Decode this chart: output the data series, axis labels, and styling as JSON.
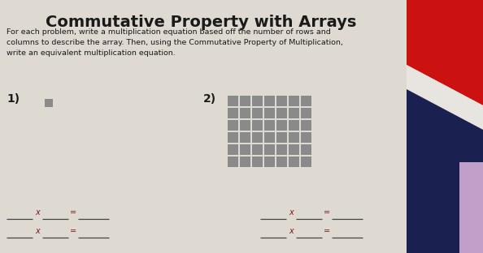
{
  "title": "Commutative Property with Arrays",
  "instructions": "For each problem, write a multiplication equation based off the number of rows and\ncolumns to describe the array. Then, using the Commutative Property of Multiplication,\nwrite an equivalent multiplication equation.",
  "problem1_label": "1)",
  "problem2_label": "2)",
  "array1_rows": 1,
  "array1_cols": 1,
  "array2_rows": 6,
  "array2_cols": 7,
  "square_color": "#8a8a8a",
  "bg_color": "#dedad2",
  "text_color": "#1a1a1a",
  "equation_color": "#7a1a1a",
  "title_fontsize": 14,
  "instr_fontsize": 6.8,
  "label_fontsize": 10,
  "eq_fontsize": 7.0,
  "flag_red": "#cc1111",
  "flag_white": "#f0eeec",
  "flag_navy": "#1a2050"
}
